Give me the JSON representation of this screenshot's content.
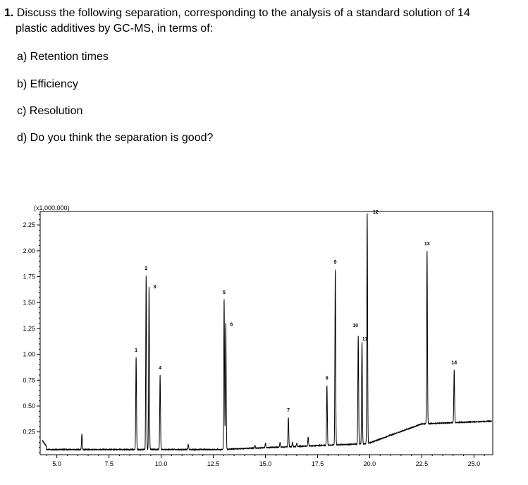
{
  "question": {
    "number": "1.",
    "line1": "Discuss the following separation, corresponding to the analysis of a standard solution of 14",
    "line2": "plastic additives by GC-MS, in terms of:",
    "parts": [
      "a) Retention times",
      "b) Efficiency",
      "c) Resolution",
      "d) Do you think the separation is good?"
    ]
  },
  "chart_data": {
    "type": "line",
    "title": "",
    "xlabel": "",
    "ylabel": "",
    "y_multiplier_label": "(x1,000,000)",
    "xlim": [
      4.2,
      25.9
    ],
    "ylim": [
      0.03,
      2.38
    ],
    "x_ticks": [
      5.0,
      7.5,
      10.0,
      12.5,
      15.0,
      17.5,
      20.0,
      22.5,
      25.0
    ],
    "x_tick_labels": [
      "5.0",
      "7.5",
      "10.0",
      "12.5",
      "15.0",
      "17.5",
      "20.0",
      "22.5",
      "25.0"
    ],
    "y_ticks": [
      0.25,
      0.5,
      0.75,
      1.0,
      1.25,
      1.5,
      1.75,
      2.0,
      2.25
    ],
    "y_tick_labels": [
      "0.25",
      "0.50",
      "0.75",
      "1.00",
      "1.25",
      "1.50",
      "1.75",
      "2.00",
      "2.25"
    ],
    "grid": false,
    "peaks": [
      {
        "label": "1",
        "x": 8.8,
        "y": 0.97
      },
      {
        "label": "2",
        "x": 9.28,
        "y": 1.76
      },
      {
        "label": "3",
        "x": 9.42,
        "y": 1.65
      },
      {
        "label": "4",
        "x": 9.95,
        "y": 0.8
      },
      {
        "label": "5",
        "x": 13.02,
        "y": 1.53
      },
      {
        "label": "6",
        "x": 13.1,
        "y": 1.3
      },
      {
        "label": "7",
        "x": 16.1,
        "y": 0.39
      },
      {
        "label": "8",
        "x": 17.95,
        "y": 0.7
      },
      {
        "label": "9",
        "x": 18.35,
        "y": 1.82
      },
      {
        "label": "10",
        "x": 19.45,
        "y": 1.18
      },
      {
        "label": "11",
        "x": 19.63,
        "y": 1.12
      },
      {
        "label": "12",
        "x": 19.88,
        "y": 2.36
      },
      {
        "label": "13",
        "x": 22.75,
        "y": 2.0
      },
      {
        "label": "14",
        "x": 24.05,
        "y": 0.85
      }
    ],
    "minor_peaks": [
      {
        "x": 6.2,
        "y": 0.23
      },
      {
        "x": 11.3,
        "y": 0.13
      },
      {
        "x": 14.5,
        "y": 0.12
      },
      {
        "x": 15.0,
        "y": 0.14
      },
      {
        "x": 15.7,
        "y": 0.15
      },
      {
        "x": 16.3,
        "y": 0.15
      },
      {
        "x": 16.5,
        "y": 0.14
      },
      {
        "x": 17.05,
        "y": 0.2
      },
      {
        "x": 20.95,
        "y": 0.22
      }
    ]
  }
}
